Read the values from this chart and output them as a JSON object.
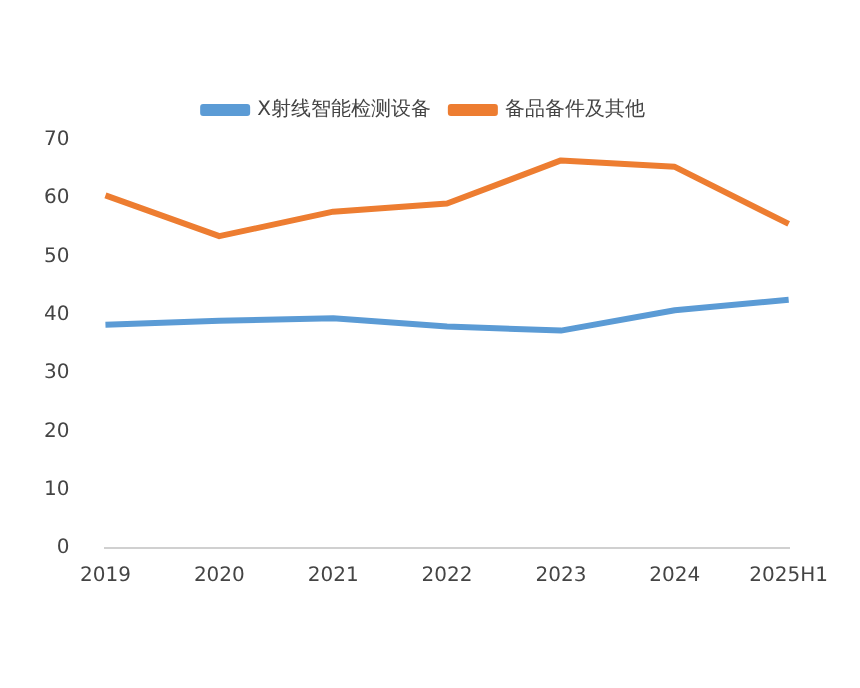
{
  "chart_data": {
    "type": "line",
    "categories": [
      "2019",
      "2020",
      "2021",
      "2022",
      "2023",
      "2024",
      "2025H1"
    ],
    "series": [
      {
        "name": "X射线智能检测设备",
        "color": "#5b9bd5",
        "values": [
          38.3,
          39,
          39.4,
          38,
          37.3,
          40.8,
          42.6
        ]
      },
      {
        "name": "备品备件及其他",
        "color": "#ed7d31",
        "values": [
          60.5,
          53.5,
          57.7,
          59.1,
          66.5,
          65.4,
          55.6
        ]
      }
    ],
    "ylim": [
      0,
      70
    ],
    "yticks": [
      0,
      10,
      20,
      30,
      40,
      50,
      60,
      70
    ],
    "grid": false,
    "legend": "top",
    "marker": "none",
    "line_style": "solid"
  }
}
